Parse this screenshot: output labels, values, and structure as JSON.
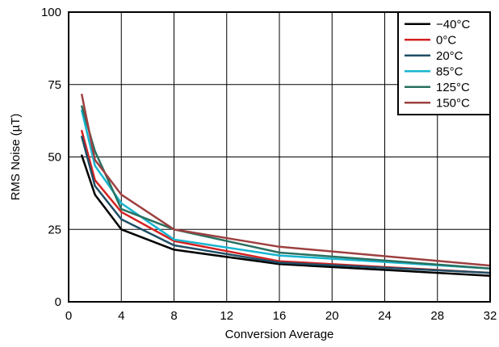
{
  "chart_data": {
    "type": "line",
    "xlabel": "Conversion Average",
    "ylabel": "RMS Noise (µT)",
    "xlim": [
      0,
      32
    ],
    "ylim": [
      0,
      100
    ],
    "xticks": [
      0,
      4,
      8,
      12,
      16,
      20,
      24,
      28,
      32
    ],
    "yticks": [
      0,
      25,
      50,
      75,
      100
    ],
    "grid": true,
    "legend_position": "top-right",
    "x": [
      1,
      2,
      4,
      8,
      16,
      32
    ],
    "series": [
      {
        "name": "−40°C",
        "color": "#000000",
        "values": [
          50.5,
          37,
          25,
          18,
          13,
          9
        ]
      },
      {
        "name": "0°C",
        "color": "#d42222",
        "values": [
          59,
          42,
          31,
          21,
          14,
          10
        ]
      },
      {
        "name": "20°C",
        "color": "#1f4e66",
        "values": [
          57,
          40,
          28.5,
          19.5,
          13.5,
          10
        ]
      },
      {
        "name": "85°C",
        "color": "#17b5cf",
        "values": [
          66,
          47,
          34,
          21.5,
          16,
          11.5
        ]
      },
      {
        "name": "125°C",
        "color": "#2a7060",
        "values": [
          67.5,
          52,
          32,
          25,
          17,
          11.5
        ]
      },
      {
        "name": "150°C",
        "color": "#9e4040",
        "values": [
          71.5,
          49,
          37,
          25,
          19,
          12.5
        ]
      }
    ]
  }
}
